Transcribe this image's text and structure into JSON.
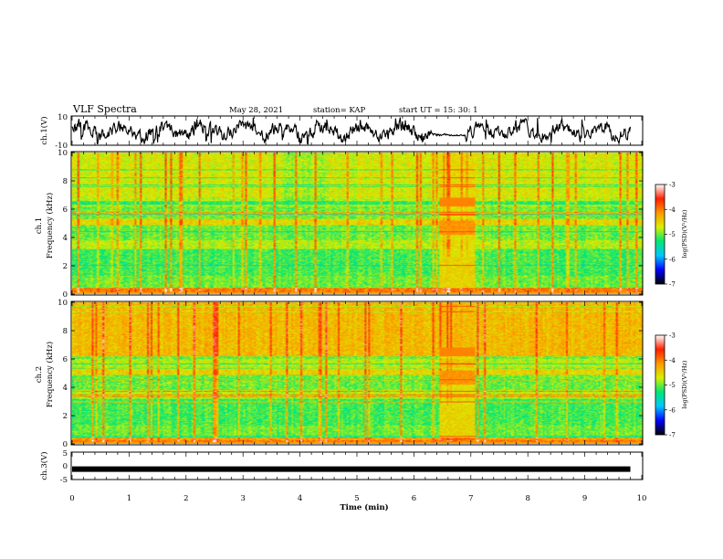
{
  "header": {
    "title": "VLF Spectra",
    "date": "May 28, 2021",
    "station": "station= KAP",
    "start": "start  UT =   15: 30: 1"
  },
  "colors": {
    "trace": "#000000",
    "colormap": [
      "#000000",
      "#0000ff",
      "#00c8ff",
      "#00e676",
      "#d8f000",
      "#ff9900",
      "#ff2000",
      "#ffffff"
    ]
  },
  "chart_data": [
    {
      "type": "line",
      "panel": "ch1-waveform",
      "ylabel": "ch.1(V)",
      "ylim": [
        -10,
        10
      ],
      "yticks": [
        "10",
        "-10"
      ],
      "x": [
        0,
        1,
        2,
        3,
        4,
        5,
        6,
        6.3,
        6.5,
        6.8,
        7,
        8,
        9,
        9.8
      ],
      "values": [
        0,
        1.5,
        -1,
        2,
        -2,
        1,
        -1.5,
        -1.5,
        -2,
        -1.5,
        0,
        1,
        -1,
        0
      ],
      "note": "noisy oscillating waveform, amplitude mostly -6..6 V, damped between ~6.3 and ~6.9 min"
    },
    {
      "type": "heatmap",
      "panel": "ch1-spectrogram",
      "ylabel": "ch.1 Frequency (kHz)",
      "ylim": [
        0,
        10
      ],
      "yticks": [
        "0",
        "2",
        "4",
        "6",
        "8",
        "10"
      ],
      "colorbar": {
        "label": "log(PSD)(V²/Hz)",
        "range": [
          -7,
          -3
        ],
        "ticks": [
          "-3",
          "-4",
          "-5",
          "-6",
          "-7"
        ]
      }
    },
    {
      "type": "heatmap",
      "panel": "ch2-spectrogram",
      "ylabel": "ch.2 Frequency (kHz)",
      "ylim": [
        0,
        10
      ],
      "yticks": [
        "0",
        "2",
        "4",
        "6",
        "8",
        "10"
      ],
      "colorbar": {
        "label": "log(PSD)(V²/Hz)",
        "range": [
          -7,
          -3
        ],
        "ticks": [
          "-3",
          "-4",
          "-5",
          "-6",
          "-7"
        ]
      }
    },
    {
      "type": "line",
      "panel": "ch3-waveform",
      "ylabel": "ch.3(V)",
      "ylim": [
        -5,
        5
      ],
      "yticks": [
        "5",
        "0",
        "-5"
      ],
      "x": [
        0,
        9.8
      ],
      "values": [
        -1.2,
        -1.2
      ]
    }
  ],
  "xaxis": {
    "label": "Time  (min)",
    "xlim": [
      0,
      10
    ],
    "ticks": [
      "0",
      "1",
      "2",
      "3",
      "4",
      "5",
      "6",
      "7",
      "8",
      "9",
      "10"
    ]
  }
}
